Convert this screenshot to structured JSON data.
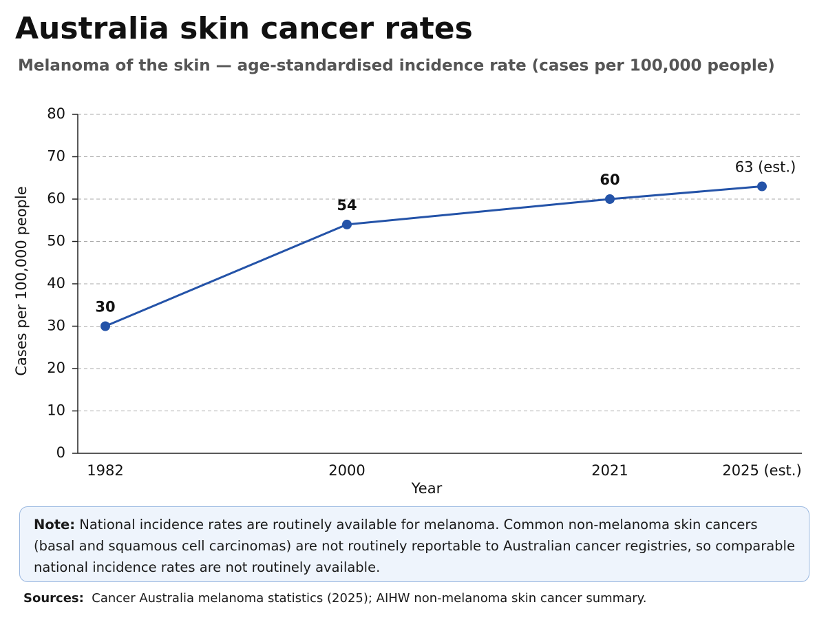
{
  "chart_data": {
    "type": "line",
    "title": "Australia skin cancer rates",
    "subtitle": "Melanoma of the skin — age-standardised incidence rate (cases per 100,000 people)",
    "x_label": "Year",
    "y_label": "Cases per 100,000 people",
    "categories": [
      "1982",
      "2000",
      "2021",
      "2025 (est.)"
    ],
    "values": [
      30,
      54,
      60,
      63
    ],
    "value_labels": [
      "30",
      "54",
      "60",
      "63 (est.)"
    ],
    "color": "#2453a8",
    "ylim": [
      0,
      80
    ],
    "yticks": [
      0,
      10,
      20,
      30,
      40,
      50,
      60,
      70,
      80
    ],
    "grid": true
  },
  "note": {
    "label": "Note:",
    "text": "National incidence rates are routinely available for melanoma. Common non-melanoma skin cancers (basal and squamous cell carcinomas) are not routinely reportable to Australian cancer registries, so comparable national incidence rates are not routinely available."
  },
  "sources": {
    "label": "Sources:",
    "text": "Cancer Australia melanoma statistics (2025); AIHW non-melanoma skin cancer summary."
  }
}
